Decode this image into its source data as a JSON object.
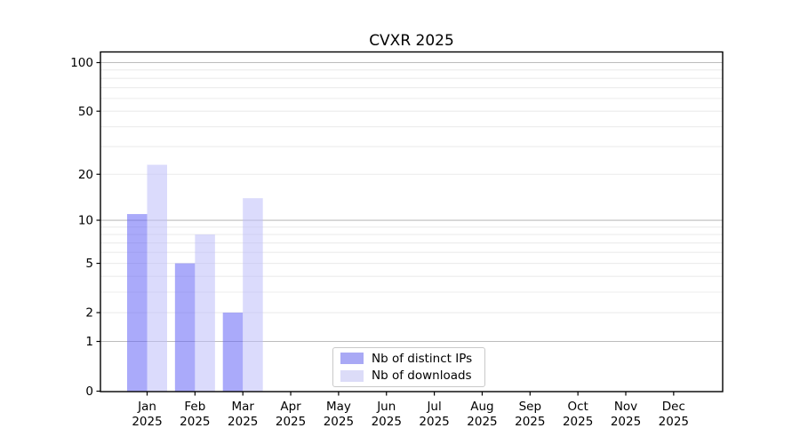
{
  "title": "CVXR 2025",
  "legend": {
    "position": "bottom-center",
    "items": [
      {
        "label": "Nb of distinct IPs",
        "color": "#a9a9f5"
      },
      {
        "label": "Nb of downloads",
        "color": "#dcdcf8"
      }
    ]
  },
  "chart_data": {
    "type": "bar",
    "title": "CVXR 2025",
    "categories": [
      "Jan 2025",
      "Feb 2025",
      "Mar 2025",
      "Apr 2025",
      "May 2025",
      "Jun 2025",
      "Jul 2025",
      "Aug 2025",
      "Sep 2025",
      "Oct 2025",
      "Nov 2025",
      "Dec 2025"
    ],
    "series": [
      {
        "name": "Nb of distinct IPs",
        "values": [
          11,
          5,
          2,
          0,
          0,
          0,
          0,
          0,
          0,
          0,
          0,
          0
        ],
        "fill": "rgba(100,100,245,0.55)",
        "legend_color": "#a9a9f5"
      },
      {
        "name": "Nb of downloads",
        "values": [
          23,
          8,
          14,
          0,
          0,
          0,
          0,
          0,
          0,
          0,
          0,
          0
        ],
        "fill": "rgba(190,190,250,0.55)",
        "legend_color": "#dcdcf8"
      }
    ],
    "xlabel": "",
    "ylabel": "",
    "y_axis": {
      "scale": "log10(1+x)",
      "ticks": [
        0,
        1,
        2,
        5,
        10,
        20,
        50,
        100
      ],
      "range": [
        0,
        116
      ]
    },
    "grid": {
      "on": true,
      "major_lines": [
        1,
        10,
        100
      ],
      "minor_lines": [
        2,
        3,
        4,
        5,
        6,
        7,
        8,
        9,
        20,
        30,
        40,
        50,
        60,
        70,
        80,
        90
      ]
    },
    "legend_position": "bottom-center"
  }
}
